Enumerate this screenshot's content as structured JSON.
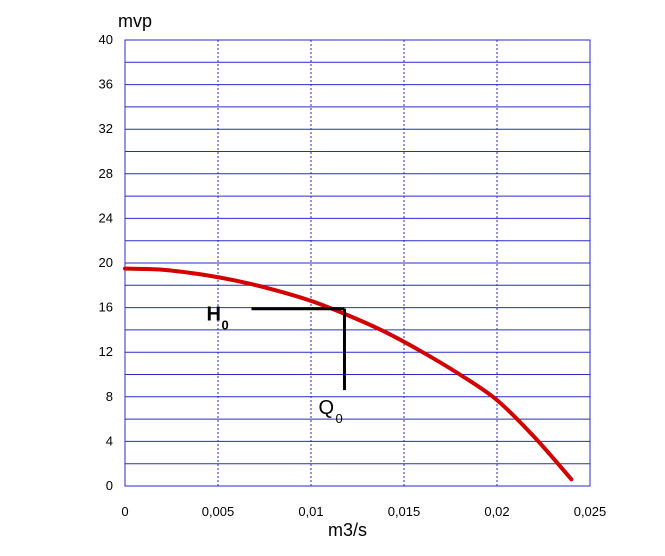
{
  "chart_data": {
    "type": "line",
    "xlabel": "m3/s",
    "ylabel": "mvp",
    "xlim": [
      0,
      0.025
    ],
    "ylim": [
      0,
      40
    ],
    "x_ticks": [
      "0",
      "0,005",
      "0,01",
      "0,015",
      "0,02",
      "0,025"
    ],
    "y_ticks": [
      "0",
      "4",
      "8",
      "12",
      "16",
      "20",
      "24",
      "28",
      "32",
      "36",
      "40"
    ],
    "x_ticks_values": [
      0,
      0.005,
      0.01,
      0.015,
      0.02,
      0.025
    ],
    "y_ticks_values": [
      0,
      4,
      8,
      12,
      16,
      20,
      24,
      28,
      32,
      36,
      40
    ],
    "grid_x_values": [
      0,
      0.005,
      0.01,
      0.015,
      0.02,
      0.025
    ],
    "grid_y_step": 2,
    "grid": true,
    "series": [
      {
        "color": "#d40000",
        "x": [
          0,
          0.002,
          0.004,
          0.006,
          0.008,
          0.01,
          0.012,
          0.014,
          0.016,
          0.018,
          0.02,
          0.022,
          0.024
        ],
        "y": [
          19.5,
          19.4,
          19.0,
          18.4,
          17.6,
          16.6,
          15.3,
          13.8,
          12.0,
          10.0,
          7.7,
          4.4,
          0.6
        ]
      }
    ],
    "annotations": {
      "operating_point": {
        "x": 0.0118,
        "y": 15.9
      },
      "h_line_start_x": 0.0068,
      "q_line_end_y": 8.6,
      "h_label": {
        "main": "H",
        "sub": "0"
      },
      "q_label": {
        "main": "Q",
        "sub": "0"
      }
    }
  }
}
